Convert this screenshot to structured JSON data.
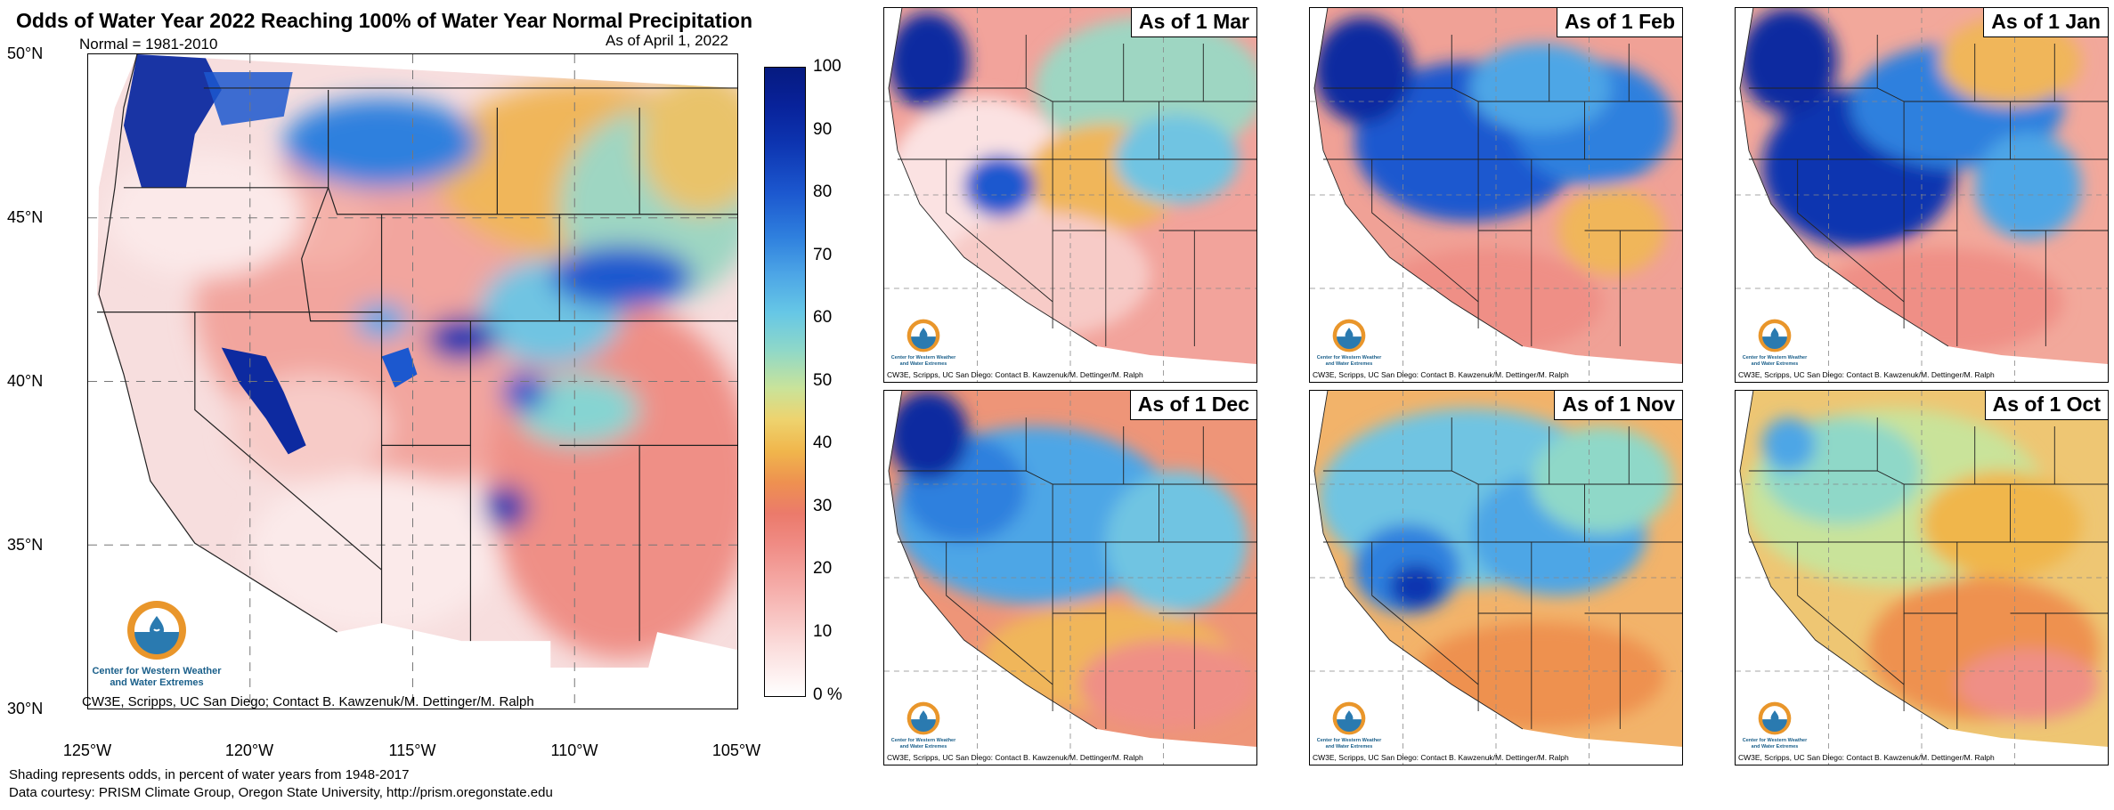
{
  "main": {
    "title": "Odds of Water Year 2022 Reaching 100% of Water Year Normal Precipitation",
    "normal_label": "Normal = 1981-2010",
    "as_of": "As of April 1, 2022",
    "lat_labels": [
      "50°N",
      "45°N",
      "40°N",
      "35°N",
      "30°N"
    ],
    "lon_labels": [
      "125°W",
      "120°W",
      "115°W",
      "110°W",
      "105°W"
    ],
    "credit": "CW3E, Scripps, UC San Diego; Contact B. Kawzenuk/M. Dettinger/M. Ralph",
    "logo_line1": "Center for Western Weather",
    "logo_line2": "and Water Extremes",
    "footer_line1": "Shading represents odds, in percent of water years from 1948-2017",
    "footer_line2": "Data courtesy: PRISM Climate Group, Oregon State University, http://prism.oregonstate.edu"
  },
  "colorbar": {
    "labels": [
      "100",
      "90",
      "80",
      "70",
      "60",
      "50",
      "40",
      "30",
      "20",
      "10",
      "0 %"
    ],
    "range": [
      0,
      100
    ]
  },
  "panels": [
    {
      "title": "As of 1 Mar",
      "credit": "CW3E, Scripps, UC San Diego: Contact B. Kawzenuk/M. Dettinger/M. Ralph",
      "logo_line1": "Center for Western Weather",
      "logo_line2": "and Water Extremes"
    },
    {
      "title": "As of 1 Feb",
      "credit": "CW3E, Scripps, UC San Diego: Contact B. Kawzenuk/M. Dettinger/M. Ralph",
      "logo_line1": "Center for Western Weather",
      "logo_line2": "and Water Extremes"
    },
    {
      "title": "As of 1 Jan",
      "credit": "CW3E, Scripps, UC San Diego: Contact B. Kawzenuk/M. Dettinger/M. Ralph",
      "logo_line1": "Center for Western Weather",
      "logo_line2": "and Water Extremes"
    },
    {
      "title": "As of 1 Dec",
      "credit": "CW3E, Scripps, UC San Diego: Contact B. Kawzenuk/M. Dettinger/M. Ralph",
      "logo_line1": "Center for Western Weather",
      "logo_line2": "and Water Extremes"
    },
    {
      "title": "As of 1 Nov",
      "credit": "CW3E, Scripps, UC San Diego: Contact B. Kawzenuk/M. Dettinger/M. Ralph",
      "logo_line1": "Center for Western Weather",
      "logo_line2": "and Water Extremes"
    },
    {
      "title": "As of 1 Oct",
      "credit": "CW3E, Scripps, UC San Diego: Contact B. Kawzenuk/M. Dettinger/M. Ralph",
      "logo_line1": "Center for Western Weather",
      "logo_line2": "and Water Extremes"
    }
  ]
}
